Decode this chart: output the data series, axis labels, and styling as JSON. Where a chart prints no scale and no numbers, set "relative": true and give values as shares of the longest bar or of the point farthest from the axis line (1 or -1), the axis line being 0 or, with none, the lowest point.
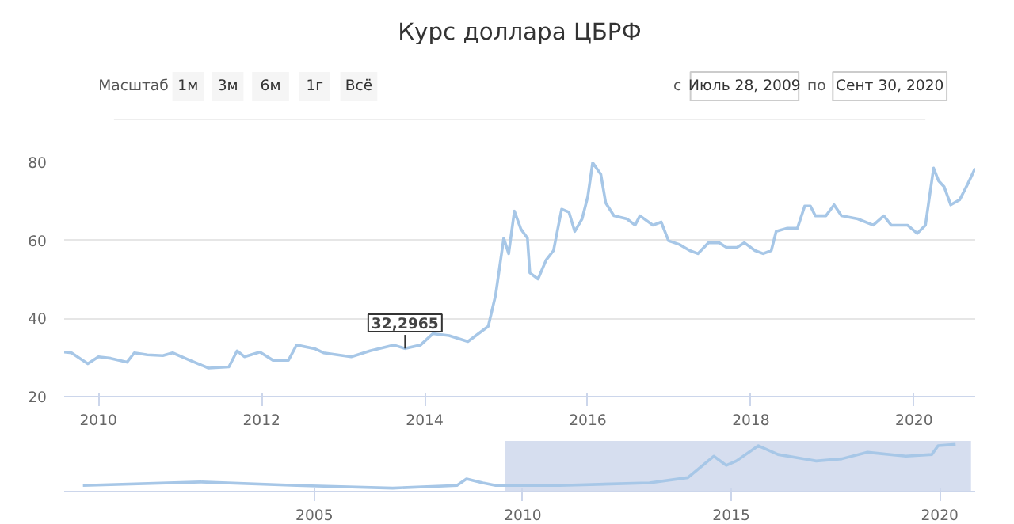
{
  "chart_data": [
    {
      "type": "line",
      "title": "Курс доллара ЦБРФ",
      "annotations": [
        "Масштаб",
        "1м",
        "3м",
        "6м",
        "1г",
        "Всё",
        "с",
        "Июль 28, 2009",
        "по",
        "Сент 30, 2020",
        {
          "text": "32,2965",
          "x": 2013.76,
          "y": 32.2965
        }
      ],
      "x": [
        2009.58,
        2009.67,
        2009.87,
        2010.0,
        2010.15,
        2010.35,
        2010.44,
        2010.6,
        2010.79,
        2010.91,
        2011.12,
        2011.35,
        2011.6,
        2011.7,
        2011.79,
        2011.98,
        2012.14,
        2012.33,
        2012.43,
        2012.66,
        2012.76,
        2013.1,
        2013.33,
        2013.62,
        2013.76,
        2013.95,
        2014.1,
        2014.3,
        2014.53,
        2014.78,
        2014.87,
        2014.97,
        2015.03,
        2015.1,
        2015.18,
        2015.26,
        2015.29,
        2015.39,
        2015.49,
        2015.58,
        2015.68,
        2015.77,
        2015.84,
        2015.93,
        2016.0,
        2016.06,
        2016.16,
        2016.22,
        2016.32,
        2016.48,
        2016.58,
        2016.64,
        2016.8,
        2016.9,
        2016.99,
        2017.12,
        2017.25,
        2017.35,
        2017.48,
        2017.61,
        2017.7,
        2017.83,
        2017.92,
        2018.05,
        2018.15,
        2018.25,
        2018.31,
        2018.44,
        2018.57,
        2018.66,
        2018.73,
        2018.79,
        2018.92,
        2019.02,
        2019.11,
        2019.31,
        2019.5,
        2019.63,
        2019.72,
        2019.92,
        2020.04,
        2020.14,
        2020.24,
        2020.3,
        2020.37,
        2020.45,
        2020.56,
        2020.66,
        2020.75
      ],
      "series": [
        {
          "color": "#a7c7e7",
          "values": [
            31.4,
            31.2,
            28.4,
            30.2,
            29.8,
            28.8,
            31.2,
            30.7,
            30.5,
            31.2,
            29.3,
            27.3,
            27.6,
            31.7,
            30.2,
            31.4,
            29.3,
            29.3,
            33.2,
            32.2,
            31.2,
            30.2,
            31.7,
            33.2,
            32.2965,
            33.2,
            36.1,
            35.6,
            34.1,
            38.0,
            46.0,
            60.6,
            56.6,
            67.5,
            62.9,
            60.6,
            51.7,
            50.1,
            55.0,
            57.4,
            68.0,
            67.2,
            62.3,
            65.5,
            71.2,
            79.9,
            76.9,
            69.6,
            66.3,
            65.5,
            63.9,
            66.3,
            63.9,
            64.7,
            59.9,
            59.0,
            57.4,
            56.6,
            59.4,
            59.4,
            58.2,
            58.2,
            59.4,
            57.4,
            56.6,
            57.4,
            62.3,
            63.1,
            63.1,
            68.8,
            68.8,
            66.3,
            66.3,
            69.1,
            66.3,
            65.5,
            63.9,
            66.3,
            63.9,
            63.9,
            61.8,
            63.9,
            78.5,
            75.3,
            73.7,
            69.1,
            70.4,
            74.5,
            78.5
          ]
        }
      ],
      "xlim": [
        2009.58,
        2020.75
      ],
      "xticks": [
        2010,
        2012,
        2014,
        2016,
        2018,
        2020
      ],
      "ylim": [
        20,
        80
      ],
      "yticks": [
        20,
        40,
        60,
        80
      ],
      "grid": "y"
    },
    {
      "type": "line",
      "relative": true,
      "tick_labels": "x",
      "x": [
        1999.45,
        2002.27,
        2004.58,
        2006.88,
        2008.42,
        2008.65,
        2009.04,
        2009.35,
        2010.88,
        2013.04,
        2013.96,
        2014.58,
        2014.88,
        2015.12,
        2015.65,
        2016.12,
        2017.04,
        2017.65,
        2018.27,
        2019.19,
        2019.81,
        2019.96,
        2020.38
      ],
      "series": [
        {
          "color": "#a7c7e7",
          "values": [
            0.06,
            0.14,
            0.06,
            0,
            0.06,
            0.21,
            0.12,
            0.06,
            0.06,
            0.12,
            0.24,
            0.73,
            0.52,
            0.62,
            0.97,
            0.77,
            0.62,
            0.67,
            0.82,
            0.73,
            0.77,
            0.97,
            1.0
          ]
        }
      ],
      "xlim": [
        1999.0,
        2020.85
      ],
      "xticks": [
        2005,
        2010,
        2015,
        2020
      ],
      "bands": [
        {
          "axis": "x",
          "from": 2009.58,
          "to": 2020.75,
          "color": "#ccd6eb"
        }
      ]
    }
  ]
}
